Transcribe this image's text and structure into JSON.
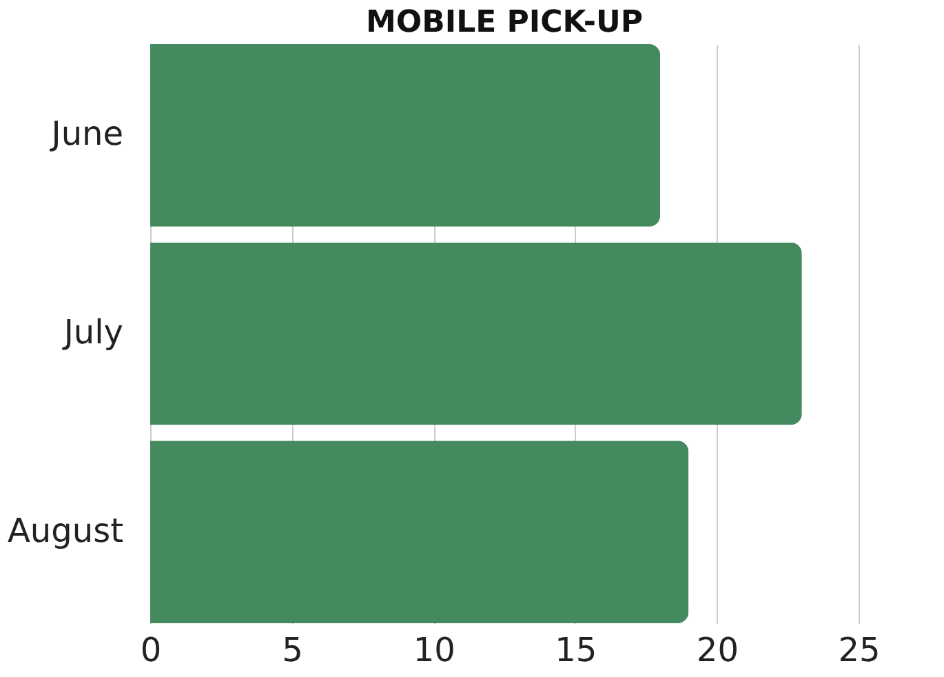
{
  "chart_data": {
    "type": "bar",
    "orientation": "horizontal",
    "title": "MOBILE PICK-UP",
    "categories": [
      "June",
      "July",
      "August"
    ],
    "values": [
      18,
      23,
      19
    ],
    "color": "#458a5e",
    "xlim": [
      0,
      25
    ],
    "xticks": [
      0,
      5,
      10,
      15,
      20,
      25
    ],
    "grid": "x"
  }
}
